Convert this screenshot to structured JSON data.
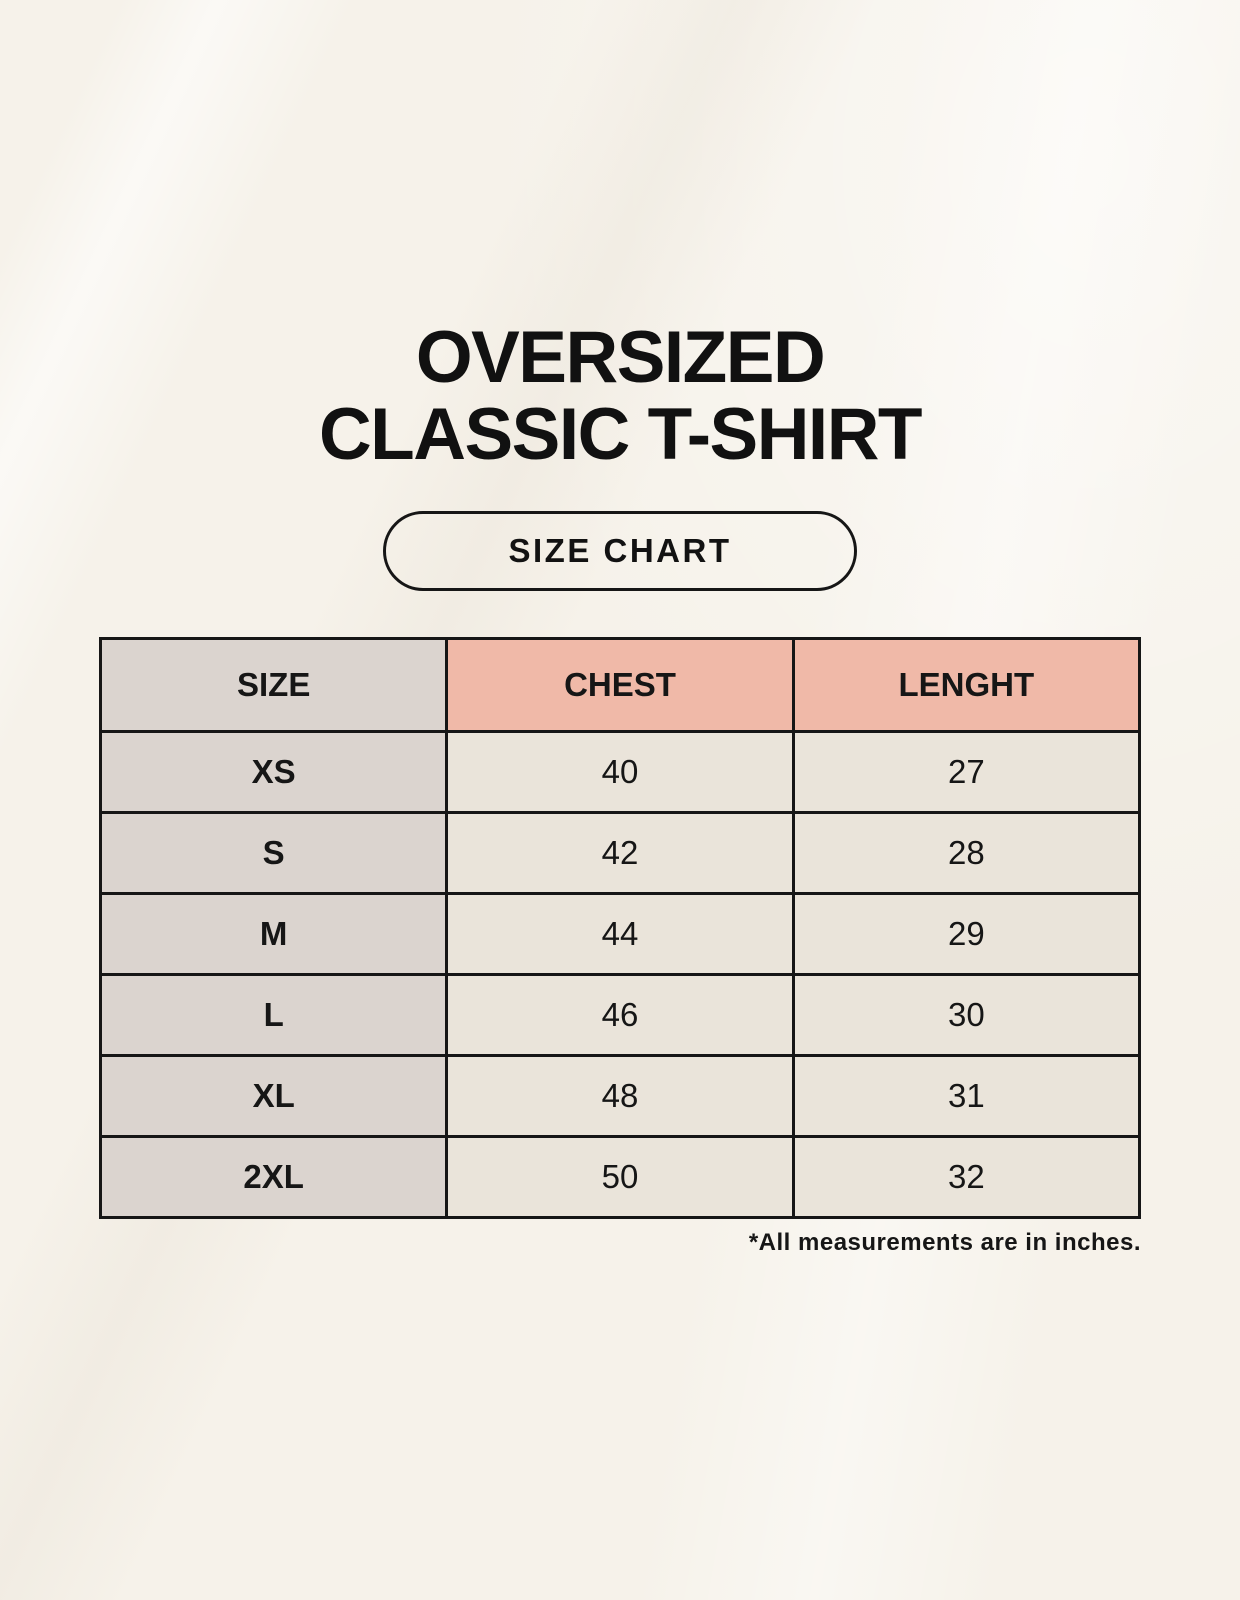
{
  "title": {
    "line1": "OVERSIZED",
    "line2": "CLASSIC T-SHIRT"
  },
  "size_chart_button": {
    "label": "SIZE CHART"
  },
  "chart_data": {
    "type": "table",
    "title": "OVERSIZED CLASSIC T-SHIRT",
    "columns": [
      "SIZE",
      "CHEST",
      "LENGHT"
    ],
    "rows": [
      [
        "XS",
        "40",
        "27"
      ],
      [
        "S",
        "42",
        "28"
      ],
      [
        "M",
        "44",
        "29"
      ],
      [
        "L",
        "46",
        "30"
      ],
      [
        "XL",
        "48",
        "31"
      ],
      [
        "2XL",
        "50",
        "32"
      ]
    ],
    "footnote": "*All measurements are in inches."
  },
  "colors": {
    "background": "#F6F2EA",
    "size_column": "#DBD4CF",
    "header_accent": "#F0B9A8",
    "value_cell": "#EAE4DA",
    "border": "#161616",
    "text": "#121212"
  }
}
